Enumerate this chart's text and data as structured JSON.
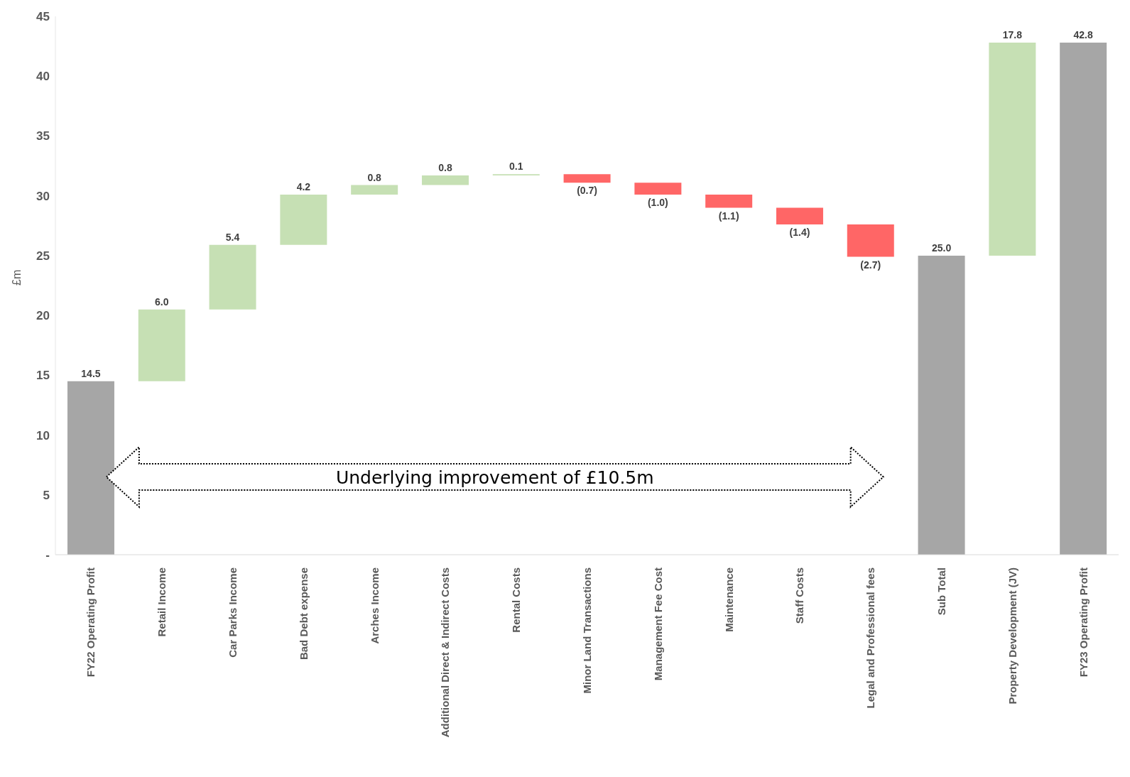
{
  "chart_data": {
    "type": "bar",
    "ylabel": "£m",
    "categories": [
      "FY22 Operating Profit",
      "Retail Income",
      "Car Parks Income",
      "Bad Debt expense",
      "Arches Income",
      "Additional Direct & Indirect Costs",
      "Rental Costs",
      "Minor Land Transactions",
      "Management Fee Cost",
      "Maintenance",
      "Staff Costs",
      "Legal and Professional fees",
      "Sub Total",
      "Property Development (JV)",
      "FY23 Operating Profit"
    ],
    "values": [
      14.5,
      6.0,
      5.4,
      4.2,
      0.8,
      0.8,
      0.1,
      -0.7,
      -1.0,
      -1.1,
      -1.4,
      -2.7,
      25.0,
      17.8,
      42.8
    ],
    "base": [
      0,
      14.5,
      20.5,
      25.9,
      30.1,
      30.9,
      31.7,
      31.8,
      31.1,
      30.1,
      29.0,
      27.6,
      0,
      25.0,
      0
    ],
    "colors": [
      "#a6a6a6",
      "#c6e0b4",
      "#c6e0b4",
      "#c6e0b4",
      "#c6e0b4",
      "#c6e0b4",
      "#c6e0b4",
      "#ff6666",
      "#ff6666",
      "#ff6666",
      "#ff6666",
      "#ff6666",
      "#a6a6a6",
      "#c6e0b4",
      "#a6a6a6"
    ],
    "value_labels": [
      "14.5",
      "6.0",
      "5.4",
      "4.2",
      "0.8",
      "0.8",
      "0.1",
      "(0.7)",
      "(1.0)",
      "(1.1)",
      "(1.4)",
      "(2.7)",
      "25.0",
      "17.8",
      "42.8"
    ],
    "ylim": [
      0,
      45
    ],
    "yticks": [
      {
        "value": 0,
        "label": "-"
      },
      5,
      10,
      15,
      20,
      25,
      30,
      35,
      40,
      45
    ],
    "annotations": [
      "Underlying improvement of £10.5m"
    ],
    "grid": false,
    "legend": false
  }
}
